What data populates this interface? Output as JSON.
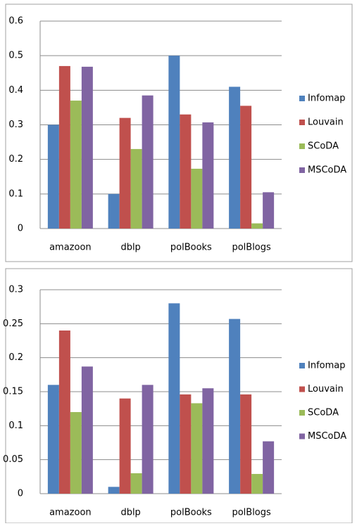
{
  "chart_data": [
    {
      "type": "bar",
      "categories": [
        "amazoon",
        "dblp",
        "polBooks",
        "polBlogs"
      ],
      "series": [
        {
          "name": "Infomap",
          "color": "#4f81bd",
          "values": [
            0.3,
            0.1,
            0.5,
            0.41
          ]
        },
        {
          "name": "Louvain",
          "color": "#c0504d",
          "values": [
            0.47,
            0.32,
            0.33,
            0.355
          ]
        },
        {
          "name": "SCoDA",
          "color": "#9bbb59",
          "values": [
            0.37,
            0.23,
            0.173,
            0.015
          ]
        },
        {
          "name": "MSCoDA",
          "color": "#8064a2",
          "values": [
            0.468,
            0.385,
            0.307,
            0.105
          ]
        }
      ],
      "ylim": [
        0,
        0.6
      ],
      "yticks": [
        0,
        0.1,
        0.2,
        0.3,
        0.4,
        0.5,
        0.6
      ],
      "grid": true,
      "legend": "right"
    },
    {
      "type": "bar",
      "categories": [
        "amazoon",
        "dblp",
        "polBooks",
        "polBlogs"
      ],
      "series": [
        {
          "name": "Infomap",
          "color": "#4f81bd",
          "values": [
            0.16,
            0.01,
            0.28,
            0.257
          ]
        },
        {
          "name": "Louvain",
          "color": "#c0504d",
          "values": [
            0.24,
            0.14,
            0.146,
            0.146
          ]
        },
        {
          "name": "SCoDA",
          "color": "#9bbb59",
          "values": [
            0.12,
            0.03,
            0.133,
            0.029
          ]
        },
        {
          "name": "MSCoDA",
          "color": "#8064a2",
          "values": [
            0.187,
            0.16,
            0.155,
            0.077
          ]
        }
      ],
      "ylim": [
        0,
        0.3
      ],
      "yticks": [
        0,
        0.05,
        0.1,
        0.15,
        0.2,
        0.25,
        0.3
      ],
      "grid": true,
      "legend": "right"
    }
  ]
}
